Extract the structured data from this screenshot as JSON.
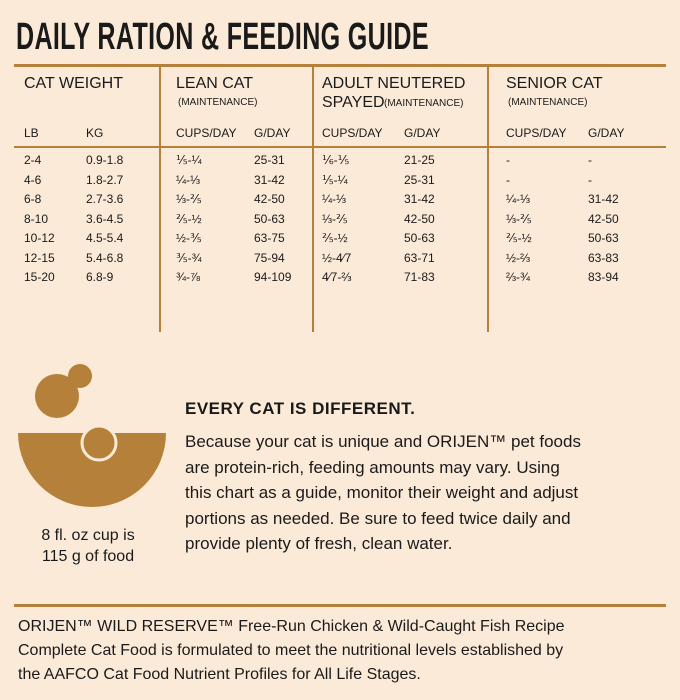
{
  "header": {
    "title": "DAILY RATION & FEEDING GUIDE"
  },
  "table": {
    "groups": [
      {
        "title": "CAT WEIGHT"
      },
      {
        "title": "LEAN CAT",
        "note": "(MAINTENANCE)"
      },
      {
        "title": "ADULT NEUTERED",
        "title2": "SPAYED",
        "note": "(MAINTENANCE)"
      },
      {
        "title": "SENIOR CAT",
        "note": "(MAINTENANCE)"
      }
    ],
    "columns": [
      "LB",
      "KG",
      "CUPS/DAY",
      "G/DAY",
      "CUPS/DAY",
      "G/DAY",
      "CUPS/DAY",
      "G/DAY"
    ],
    "rows": [
      [
        "2-4",
        "0.9-1.8",
        "⅕-¼",
        "25-31",
        "⅙-⅕",
        "21-25",
        "-",
        "-"
      ],
      [
        "4-6",
        "1.8-2.7",
        "¼-⅓",
        "31-42",
        "⅕-¼",
        "25-31",
        "-",
        "-"
      ],
      [
        "6-8",
        "2.7-3.6",
        "⅓-⅖",
        "42-50",
        "¼-⅓",
        "31-42",
        "¼-⅓",
        "31-42"
      ],
      [
        "8-10",
        "3.6-4.5",
        "⅖-½",
        "50-63",
        "⅓-⅖",
        "42-50",
        "⅓-⅖",
        "42-50"
      ],
      [
        "10-12",
        "4.5-5.4",
        "½-⅗",
        "63-75",
        "⅖-½",
        "50-63",
        "⅖-½",
        "50-63"
      ],
      [
        "12-15",
        "5.4-6.8",
        "⅗-¾",
        "75-94",
        "½-4⁄7",
        "63-71",
        "½-⅔",
        "63-83"
      ],
      [
        "15-20",
        "6.8-9",
        "¾-⅞",
        "94-109",
        "4⁄7-⅔",
        "71-83",
        "⅔-¾",
        "83-94"
      ]
    ]
  },
  "info": {
    "cup_caption": [
      "8 fl. oz cup is",
      "115 g of food"
    ],
    "heading": "EVERY CAT IS DIFFERENT.",
    "paragraph": [
      "Because your cat is unique and ORIJEN™ pet foods",
      "are protein-rich, feeding amounts may vary. Using",
      "this chart as a guide, monitor their weight and adjust",
      "portions as needed. Be sure to feed twice daily and",
      "provide plenty of fresh, clean water."
    ]
  },
  "footer": [
    "ORIJEN™ WILD RESERVE™ Free-Run Chicken & Wild-Caught Fish Recipe",
    "Complete Cat Food is formulated to meet the nutritional levels established by",
    "the AAFCO Cat Food Nutrient Profiles for All Life Stages."
  ]
}
